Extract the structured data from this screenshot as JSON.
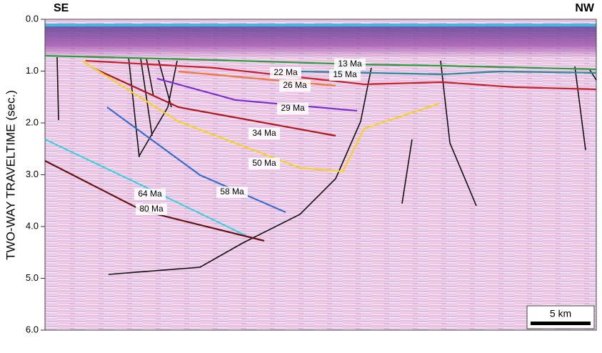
{
  "labels": {
    "left": "SE",
    "right": "NW"
  },
  "y_axis": {
    "title": "TWO-WAY TRAVELTIME (sec.)",
    "range": [
      0,
      6
    ],
    "ticks": [
      {
        "value": 0,
        "label": "0.0"
      },
      {
        "value": 1,
        "label": "1.0"
      },
      {
        "value": 2,
        "label": "2.0"
      },
      {
        "value": 3,
        "label": "3.0"
      },
      {
        "value": 4,
        "label": "4.0"
      },
      {
        "value": 5,
        "label": "5.0"
      },
      {
        "value": 6,
        "label": "6.0"
      }
    ]
  },
  "horizons": [
    {
      "label": "13 Ma",
      "color": "#2e9b3c"
    },
    {
      "label": "15 Ma",
      "color": "#2a8a9a"
    },
    {
      "label": "22 Ma",
      "color": "#c8202a"
    },
    {
      "label": "26 Ma",
      "color": "#f07a3a"
    },
    {
      "label": "29 Ma",
      "color": "#7b2fd0"
    },
    {
      "label": "34 Ma",
      "color": "#b0151c"
    },
    {
      "label": "50 Ma",
      "color": "#f5d22a"
    },
    {
      "label": "58 Ma",
      "color": "#3a6ad0"
    },
    {
      "label": "64 Ma",
      "color": "#3fd0e0"
    },
    {
      "label": "80 Ma",
      "color": "#6a1010"
    }
  ],
  "scale_bar": {
    "label": "5 km"
  }
}
